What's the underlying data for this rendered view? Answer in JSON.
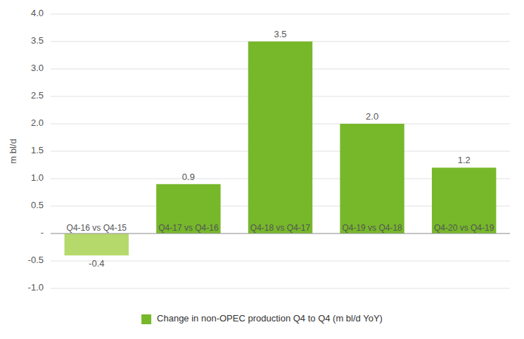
{
  "chart_data": {
    "type": "bar",
    "categories": [
      "Q4-16 vs Q4-15",
      "Q4-17 vs Q4-16",
      "Q4-18 vs Q4-17",
      "Q4-19 vs Q4-18",
      "Q4-20 vs Q4-19"
    ],
    "series": [
      {
        "name": "Change in non-OPEC production Q4 to Q4 (m bl/d YoY)",
        "color": "#76b82a",
        "colors": [
          "#b5d96b",
          "#76b82a",
          "#76b82a",
          "#76b82a",
          "#76b82a"
        ],
        "values": [
          -0.4,
          0.9,
          3.5,
          2.0,
          1.2
        ],
        "value_labels": [
          "-0.4",
          "0.9",
          "3.5",
          "2.0",
          "1.2"
        ]
      }
    ],
    "y_label": "m bl/d",
    "ylim": [
      -1.0,
      4.0
    ],
    "yticks": [
      {
        "value": -1.0,
        "label": "-1.0"
      },
      -0.5,
      {
        "value": 0.0,
        "label": "-"
      },
      0.5,
      {
        "value": 1.0,
        "label": "1.0"
      },
      1.5,
      {
        "value": 2.0,
        "label": "2.0"
      },
      2.5,
      {
        "value": 3.0,
        "label": "3.0"
      },
      3.5,
      {
        "value": 4.0,
        "label": "4.0"
      }
    ],
    "grid": true,
    "data_labels": true,
    "legend": "bottom"
  }
}
